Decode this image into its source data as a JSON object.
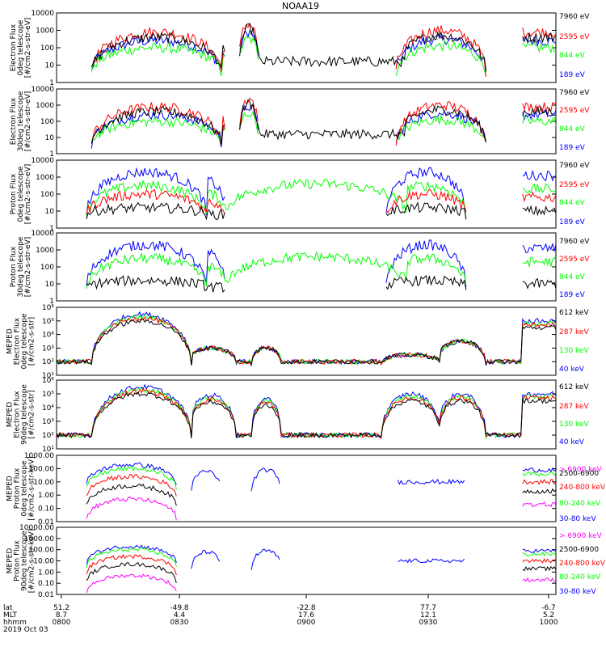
{
  "title": "NOAA19",
  "colors": {
    "blue": "#0000ff",
    "green": "#00ff00",
    "red": "#ff0000",
    "black": "#000000",
    "magenta": "#ff00ff"
  },
  "footer": {
    "row_labels": [
      "lat",
      "MLT",
      "hhmm",
      "2019 Oct 03"
    ],
    "ticks": [
      {
        "lat": "51.2",
        "mlt": "8.7",
        "hhmm": "0800"
      },
      {
        "lat": "-49.8",
        "mlt": "4.4",
        "hhmm": "0830"
      },
      {
        "lat": "-22.8",
        "mlt": "17.6",
        "hhmm": "0900"
      },
      {
        "lat": "77.7",
        "mlt": "12.1",
        "hhmm": "0930"
      },
      {
        "lat": "-6.7",
        "mlt": "5.2",
        "hhmm": "1000"
      }
    ]
  },
  "chart_data": [
    {
      "type": "line",
      "ylabel": [
        "Electron Flux",
        "0deg telescope",
        "[#/cm2-s-str-eV]"
      ],
      "yticks": [
        "1",
        "10",
        "100",
        "1000",
        "10000"
      ],
      "ylim": [
        1,
        10000
      ],
      "log": true,
      "legend": [
        {
          "name": "7960 eV",
          "color": "#000000"
        },
        {
          "name": "2595 eV",
          "color": "#ff0000"
        },
        {
          "name": "844 eV",
          "color": "#00ff00"
        },
        {
          "name": "189 eV",
          "color": "#0000ff"
        }
      ]
    },
    {
      "type": "line",
      "ylabel": [
        "Electron Flux",
        "30deg telescope",
        "[#/cm2-s-str-eV]"
      ],
      "yticks": [
        "1",
        "10",
        "100",
        "1000",
        "10000"
      ],
      "ylim": [
        1,
        10000
      ],
      "log": true,
      "legend": [
        {
          "name": "7960 eV",
          "color": "#000000"
        },
        {
          "name": "2595 eV",
          "color": "#ff0000"
        },
        {
          "name": "844 eV",
          "color": "#00ff00"
        },
        {
          "name": "189 eV",
          "color": "#0000ff"
        }
      ]
    },
    {
      "type": "line",
      "ylabel": [
        "Proton Flux",
        "0deg telescope",
        "[#/cm2-s-str-eV]"
      ],
      "yticks": [
        "1",
        "10",
        "100",
        "1000",
        "10000"
      ],
      "ylim": [
        1,
        10000
      ],
      "log": true,
      "legend": [
        {
          "name": "7960 eV",
          "color": "#000000"
        },
        {
          "name": "2595 eV",
          "color": "#ff0000"
        },
        {
          "name": "844 eV",
          "color": "#00ff00"
        },
        {
          "name": "189 eV",
          "color": "#0000ff"
        }
      ]
    },
    {
      "type": "line",
      "ylabel": [
        "Proton Flux",
        "30deg telescope",
        "[#/cm2-s-str-eV]"
      ],
      "yticks": [
        "1",
        "10",
        "100",
        "1000",
        "10000"
      ],
      "ylim": [
        1,
        10000
      ],
      "log": true,
      "legend": [
        {
          "name": "7960 eV",
          "color": "#000000"
        },
        {
          "name": "2595 eV",
          "color": "#ff0000"
        },
        {
          "name": "844 eV",
          "color": "#00ff00"
        },
        {
          "name": "189 eV",
          "color": "#0000ff"
        }
      ]
    },
    {
      "type": "line",
      "ylabel": [
        "MEPED",
        "Electron Flux",
        "0deg telescope",
        "[#/cm2-s-str]"
      ],
      "yticks": [
        "10¹",
        "10²",
        "10³",
        "10⁴",
        "10⁵",
        "10⁶"
      ],
      "ylim": [
        10,
        1000000
      ],
      "log": true,
      "legend": [
        {
          "name": "612 keV",
          "color": "#000000"
        },
        {
          "name": "287 keV",
          "color": "#ff0000"
        },
        {
          "name": "130 keV",
          "color": "#00ff00"
        },
        {
          "name": "40 keV",
          "color": "#0000ff"
        }
      ]
    },
    {
      "type": "line",
      "ylabel": [
        "MEPED",
        "Electron Flux",
        "90deg telescope",
        "[#/cm2-s-str]"
      ],
      "yticks": [
        "10¹",
        "10²",
        "10³",
        "10⁴",
        "10⁵",
        "10⁶"
      ],
      "ylim": [
        10,
        1000000
      ],
      "log": true,
      "legend": [
        {
          "name": "612 keV",
          "color": "#000000"
        },
        {
          "name": "287 keV",
          "color": "#ff0000"
        },
        {
          "name": "130 keV",
          "color": "#00ff00"
        },
        {
          "name": "40 keV",
          "color": "#0000ff"
        }
      ]
    },
    {
      "type": "line",
      "ylabel": [
        "MEPED",
        "Proton Flux",
        "0deg telescope",
        "[#/cm2-s-str-keV]"
      ],
      "yticks": [
        "0.01",
        "0.10",
        "1.00",
        "10.00",
        "100.00",
        "1000.00"
      ],
      "ylim": [
        0.01,
        1000
      ],
      "log": true,
      "legend": [
        {
          "name": "> 6900 keV",
          "color": "#ff00ff"
        },
        {
          "name": "2500-6900",
          "color": "#000000"
        },
        {
          "name": "240-800 keV",
          "color": "#ff0000"
        },
        {
          "name": "80-240 keV",
          "color": "#00ff00"
        },
        {
          "name": "30-80 keV",
          "color": "#0000ff"
        }
      ]
    },
    {
      "type": "line",
      "ylabel": [
        "MEPED",
        "Proton Flux",
        "90deg telescope",
        "[#/cm2-s-str-keV]"
      ],
      "yticks": [
        "0.01",
        "0.10",
        "1.00",
        "10.00",
        "100.00",
        "1000.00",
        "10000.00"
      ],
      "ylim": [
        0.01,
        10000
      ],
      "log": true,
      "legend": [
        {
          "name": "> 6900 keV",
          "color": "#ff00ff"
        },
        {
          "name": "2500-6900",
          "color": "#000000"
        },
        {
          "name": "240-800 keV",
          "color": "#ff0000"
        },
        {
          "name": "80-240 keV",
          "color": "#00ff00"
        },
        {
          "name": "30-80 keV",
          "color": "#0000ff"
        }
      ]
    }
  ]
}
